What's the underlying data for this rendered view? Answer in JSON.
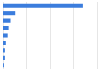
{
  "chart_data": {
    "type": "bar",
    "orientation": "horizontal",
    "categories": [
      null,
      null,
      null,
      null,
      null,
      null,
      null,
      null,
      null
    ],
    "values": [
      85,
      13,
      8,
      6,
      5,
      3,
      2,
      2,
      1
    ],
    "color": "#3b7ddd",
    "xlim": [
      0,
      100
    ],
    "xticks": [
      0,
      25,
      50,
      75,
      100
    ],
    "grid": true,
    "tick_labels": false
  }
}
